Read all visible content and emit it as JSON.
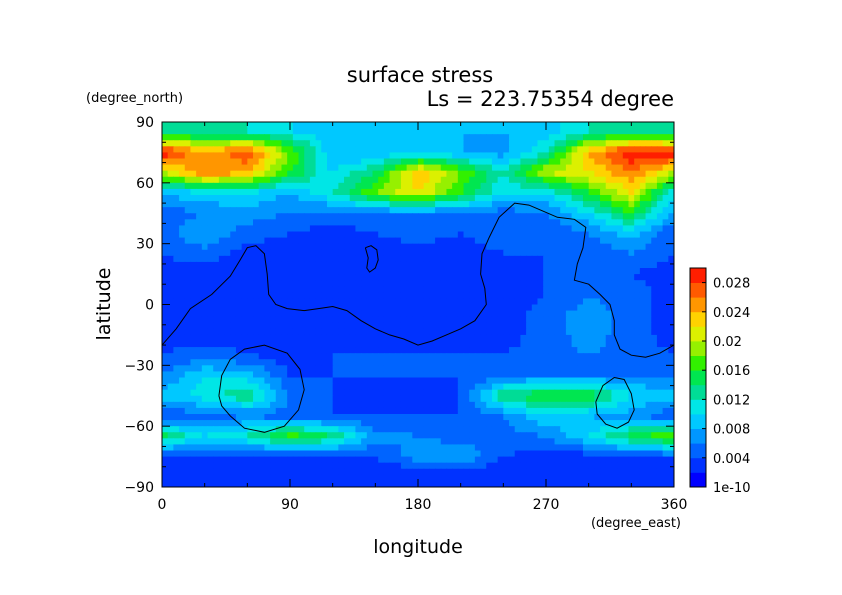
{
  "chart_data": {
    "type": "heatmap",
    "title": "surface stress",
    "subtitle": "Ls = 223.75354 degree",
    "xlabel": "longitude",
    "ylabel": "latitude",
    "x_unit": "(degree_east)",
    "y_unit": "(degree_north)",
    "xlim": [
      0,
      360
    ],
    "ylim": [
      -90,
      90
    ],
    "x_ticks": [
      "0",
      "90",
      "180",
      "270",
      "360"
    ],
    "x_tick_values": [
      0,
      90,
      180,
      270,
      360
    ],
    "y_ticks": [
      "90",
      "60",
      "30",
      "0",
      "−30",
      "−60",
      "−90"
    ],
    "y_tick_values": [
      90,
      60,
      30,
      0,
      -30,
      -60,
      -90
    ],
    "colorbar": {
      "labels": [
        "0.028",
        "0.024",
        "0.02",
        "0.016",
        "0.012",
        "0.008",
        "0.004",
        "1e-10"
      ],
      "label_values": [
        0.028,
        0.024,
        0.02,
        0.016,
        0.012,
        0.008,
        0.004,
        0.0
      ],
      "range": [
        0,
        0.03
      ],
      "colors": [
        "#0000ff",
        "#0032ff",
        "#0064ff",
        "#0096ff",
        "#00c8ff",
        "#00e6e6",
        "#00dc96",
        "#00e650",
        "#32f000",
        "#96f000",
        "#dcf000",
        "#ffd200",
        "#ff9600",
        "#ff5a00",
        "#ff1e00"
      ]
    },
    "grid": false,
    "legend_position": "right",
    "data_grid": {
      "lons": [
        0,
        30,
        60,
        90,
        120,
        150,
        180,
        210,
        240,
        270,
        300,
        330,
        360
      ],
      "lats": [
        85,
        75,
        65,
        55,
        45,
        35,
        25,
        15,
        5,
        -5,
        -15,
        -25,
        -35,
        -45,
        -55,
        -65,
        -75,
        -85
      ],
      "values": [
        [
          0.012,
          0.013,
          0.012,
          0.01,
          0.009,
          0.009,
          0.008,
          0.008,
          0.008,
          0.009,
          0.012,
          0.013,
          0.012
        ],
        [
          0.03,
          0.024,
          0.028,
          0.018,
          0.008,
          0.008,
          0.01,
          0.008,
          0.007,
          0.012,
          0.024,
          0.03,
          0.03
        ],
        [
          0.02,
          0.026,
          0.024,
          0.016,
          0.01,
          0.014,
          0.024,
          0.018,
          0.012,
          0.02,
          0.022,
          0.026,
          0.02
        ],
        [
          0.008,
          0.01,
          0.01,
          0.008,
          0.012,
          0.018,
          0.022,
          0.016,
          0.01,
          0.01,
          0.016,
          0.022,
          0.01
        ],
        [
          0.005,
          0.006,
          0.007,
          0.006,
          0.005,
          0.006,
          0.006,
          0.006,
          0.005,
          0.006,
          0.01,
          0.016,
          0.007
        ],
        [
          0.005,
          0.008,
          0.005,
          0.004,
          0.003,
          0.004,
          0.005,
          0.004,
          0.005,
          0.004,
          0.006,
          0.009,
          0.004
        ],
        [
          0.004,
          0.005,
          0.003,
          0.003,
          0.002,
          0.003,
          0.003,
          0.003,
          0.004,
          0.004,
          0.004,
          0.006,
          0.004
        ],
        [
          0.003,
          0.003,
          0.003,
          0.002,
          0.002,
          0.002,
          0.003,
          0.003,
          0.003,
          0.004,
          0.005,
          0.004,
          0.003
        ],
        [
          0.003,
          0.003,
          0.002,
          0.002,
          0.002,
          0.002,
          0.003,
          0.003,
          0.003,
          0.004,
          0.006,
          0.005,
          0.003
        ],
        [
          0.003,
          0.003,
          0.002,
          0.002,
          0.003,
          0.003,
          0.003,
          0.003,
          0.003,
          0.005,
          0.007,
          0.005,
          0.003
        ],
        [
          0.003,
          0.003,
          0.003,
          0.002,
          0.003,
          0.003,
          0.003,
          0.003,
          0.003,
          0.005,
          0.007,
          0.005,
          0.003
        ],
        [
          0.004,
          0.005,
          0.004,
          0.003,
          0.004,
          0.004,
          0.004,
          0.004,
          0.004,
          0.005,
          0.006,
          0.005,
          0.004
        ],
        [
          0.006,
          0.01,
          0.009,
          0.004,
          0.004,
          0.004,
          0.004,
          0.004,
          0.005,
          0.006,
          0.006,
          0.006,
          0.006
        ],
        [
          0.009,
          0.011,
          0.014,
          0.006,
          0.004,
          0.003,
          0.003,
          0.004,
          0.014,
          0.016,
          0.016,
          0.01,
          0.009
        ],
        [
          0.004,
          0.005,
          0.006,
          0.005,
          0.004,
          0.004,
          0.004,
          0.004,
          0.006,
          0.01,
          0.008,
          0.007,
          0.004
        ],
        [
          0.015,
          0.01,
          0.012,
          0.017,
          0.014,
          0.007,
          0.006,
          0.005,
          0.005,
          0.006,
          0.01,
          0.015,
          0.018
        ],
        [
          0.003,
          0.004,
          0.003,
          0.003,
          0.004,
          0.004,
          0.007,
          0.008,
          0.004,
          0.003,
          0.003,
          0.004,
          0.004
        ],
        [
          0.002,
          0.002,
          0.002,
          0.002,
          0.002,
          0.002,
          0.002,
          0.002,
          0.002,
          0.002,
          0.002,
          0.002,
          0.002
        ]
      ]
    },
    "contours": [
      [
        [
          0,
          -20
        ],
        [
          10,
          -12
        ],
        [
          20,
          -2
        ],
        [
          35,
          5
        ],
        [
          48,
          14
        ],
        [
          55,
          22
        ],
        [
          60,
          28
        ],
        [
          66,
          29
        ],
        [
          72,
          25
        ],
        [
          74,
          15
        ],
        [
          75,
          5
        ],
        [
          80,
          0
        ],
        [
          88,
          -2
        ],
        [
          100,
          -3
        ],
        [
          110,
          -2
        ],
        [
          120,
          -1
        ],
        [
          130,
          -3
        ],
        [
          140,
          -8
        ],
        [
          150,
          -12
        ],
        [
          160,
          -15
        ],
        [
          170,
          -17
        ],
        [
          180,
          -20
        ],
        [
          190,
          -18
        ],
        [
          200,
          -15
        ],
        [
          210,
          -12
        ],
        [
          220,
          -8
        ],
        [
          228,
          0
        ],
        [
          227,
          8
        ],
        [
          224,
          15
        ],
        [
          225,
          25
        ],
        [
          230,
          33
        ],
        [
          237,
          43
        ],
        [
          248,
          50
        ],
        [
          258,
          49
        ],
        [
          268,
          46
        ],
        [
          278,
          43
        ],
        [
          290,
          42
        ],
        [
          298,
          38
        ],
        [
          296,
          28
        ],
        [
          292,
          20
        ],
        [
          290,
          12
        ],
        [
          300,
          10
        ],
        [
          308,
          5
        ],
        [
          315,
          0
        ],
        [
          318,
          -8
        ],
        [
          318,
          -15
        ],
        [
          322,
          -22
        ],
        [
          330,
          -25
        ],
        [
          340,
          -26
        ],
        [
          350,
          -24
        ],
        [
          360,
          -20
        ]
      ],
      [
        [
          143,
          28
        ],
        [
          145,
          23
        ],
        [
          144,
          18
        ],
        [
          146,
          16
        ],
        [
          150,
          18
        ],
        [
          152,
          22
        ],
        [
          151,
          27
        ],
        [
          147,
          29
        ],
        [
          143,
          28
        ]
      ],
      [
        [
          40,
          -45
        ],
        [
          42,
          -35
        ],
        [
          48,
          -27
        ],
        [
          58,
          -22
        ],
        [
          72,
          -20
        ],
        [
          88,
          -24
        ],
        [
          97,
          -32
        ],
        [
          100,
          -42
        ],
        [
          96,
          -52
        ],
        [
          86,
          -60
        ],
        [
          72,
          -63
        ],
        [
          58,
          -61
        ],
        [
          48,
          -55
        ],
        [
          42,
          -50
        ],
        [
          40,
          -45
        ]
      ],
      [
        [
          305,
          -48
        ],
        [
          310,
          -40
        ],
        [
          318,
          -36
        ],
        [
          325,
          -37
        ],
        [
          330,
          -44
        ],
        [
          332,
          -52
        ],
        [
          328,
          -58
        ],
        [
          320,
          -61
        ],
        [
          312,
          -59
        ],
        [
          306,
          -54
        ],
        [
          305,
          -48
        ]
      ]
    ]
  }
}
